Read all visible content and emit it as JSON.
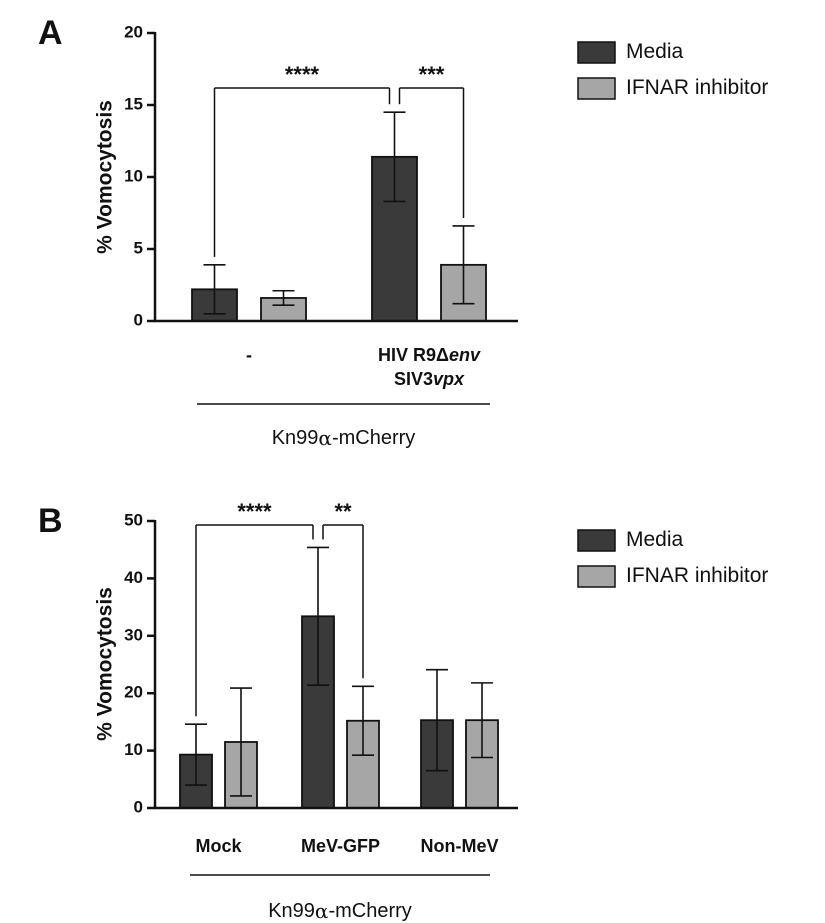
{
  "chart_data": [
    {
      "type": "bar",
      "panel": "A",
      "ylabel": "% Vomocytosis",
      "ylim": [
        0,
        20
      ],
      "yticks": [
        0,
        5,
        10,
        15,
        20
      ],
      "categories": [
        {
          "lines": [
            {
              "parts": [
                {
                  "text": "-",
                  "italic": false
                }
              ]
            }
          ]
        },
        {
          "lines": [
            {
              "parts": [
                {
                  "text": "HIV R9Δ",
                  "italic": false
                },
                {
                  "text": "env",
                  "italic": true
                }
              ]
            },
            {
              "parts": [
                {
                  "text": "SIV3",
                  "italic": false
                },
                {
                  "text": "vpx",
                  "italic": true
                }
              ]
            }
          ]
        }
      ],
      "series": [
        {
          "name": "Media",
          "color": "#3a3a3a",
          "values": [
            2.2,
            11.4
          ],
          "errors": [
            1.7,
            3.1
          ]
        },
        {
          "name": "IFNAR inhibitor",
          "color": "#a6a6a6",
          "values": [
            1.6,
            3.9
          ],
          "errors": [
            0.5,
            2.7
          ]
        }
      ],
      "group_label": {
        "prefix": "Kn99",
        "greek": "α",
        "suffix": "-mCherry"
      },
      "significance": [
        {
          "label": "****",
          "from": {
            "category": 0,
            "series": 0
          },
          "to": {
            "category": 1,
            "series": 0
          }
        },
        {
          "label": "***",
          "from": {
            "category": 1,
            "series": 0
          },
          "to": {
            "category": 1,
            "series": 1
          }
        }
      ],
      "legend": {
        "position": "top-right"
      },
      "grid": false
    },
    {
      "type": "bar",
      "panel": "B",
      "ylabel": "% Vomocytosis",
      "ylim": [
        0,
        50
      ],
      "yticks": [
        0,
        10,
        20,
        30,
        40,
        50
      ],
      "categories": [
        {
          "lines": [
            {
              "parts": [
                {
                  "text": "Mock",
                  "italic": false
                }
              ]
            }
          ]
        },
        {
          "lines": [
            {
              "parts": [
                {
                  "text": "MeV-GFP",
                  "italic": false
                }
              ]
            }
          ]
        },
        {
          "lines": [
            {
              "parts": [
                {
                  "text": "Non-MeV",
                  "italic": false
                }
              ]
            }
          ]
        }
      ],
      "series": [
        {
          "name": "Media",
          "color": "#3a3a3a",
          "values": [
            9.3,
            33.4,
            15.3
          ],
          "errors": [
            5.3,
            12.0,
            8.8
          ]
        },
        {
          "name": "IFNAR inhibitor",
          "color": "#a6a6a6",
          "values": [
            11.5,
            15.2,
            15.3
          ],
          "errors": [
            9.4,
            6.0,
            6.5
          ]
        }
      ],
      "group_label": {
        "prefix": "Kn99",
        "greek": "α",
        "suffix": "-mCherry"
      },
      "significance": [
        {
          "label": "****",
          "from": {
            "category": 0,
            "series": 0
          },
          "to": {
            "category": 1,
            "series": 0
          }
        },
        {
          "label": "**",
          "from": {
            "category": 1,
            "series": 0
          },
          "to": {
            "category": 1,
            "series": 1
          }
        }
      ],
      "legend": {
        "position": "top-right"
      },
      "grid": false
    }
  ]
}
